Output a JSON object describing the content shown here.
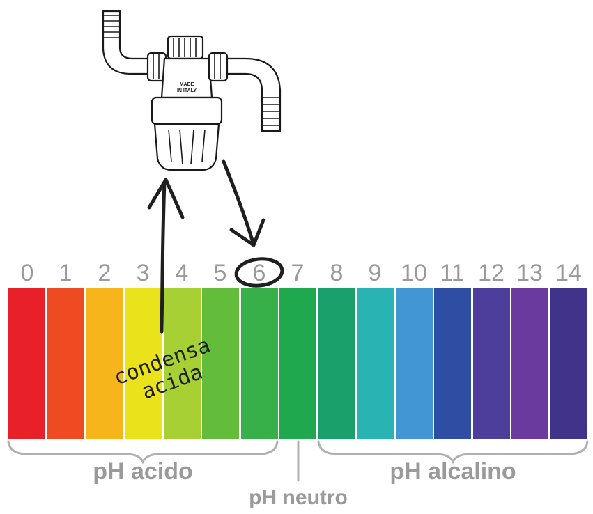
{
  "ph_scale": {
    "numbers": [
      "0",
      "1",
      "2",
      "3",
      "4",
      "5",
      "6",
      "7",
      "8",
      "9",
      "10",
      "11",
      "12",
      "13",
      "14"
    ],
    "colors": [
      "#e8202a",
      "#ef4b23",
      "#f6b61b",
      "#eae31b",
      "#a6d033",
      "#63bd3b",
      "#38b04a",
      "#1fa84d",
      "#1aa06b",
      "#29b3b3",
      "#4196d3",
      "#2e4ea3",
      "#4d3e9b",
      "#6a3a9f",
      "#41328a"
    ]
  },
  "groups": {
    "acid_label": "pH acido",
    "neutral_label": "pH neutro",
    "alkaline_label": "pH alcalino"
  },
  "annotation": {
    "line1": "condensa",
    "line2": "acida",
    "circled_value": "6"
  },
  "device": {
    "stamp_line1": "MADE",
    "stamp_line2": "IN ITALY"
  }
}
